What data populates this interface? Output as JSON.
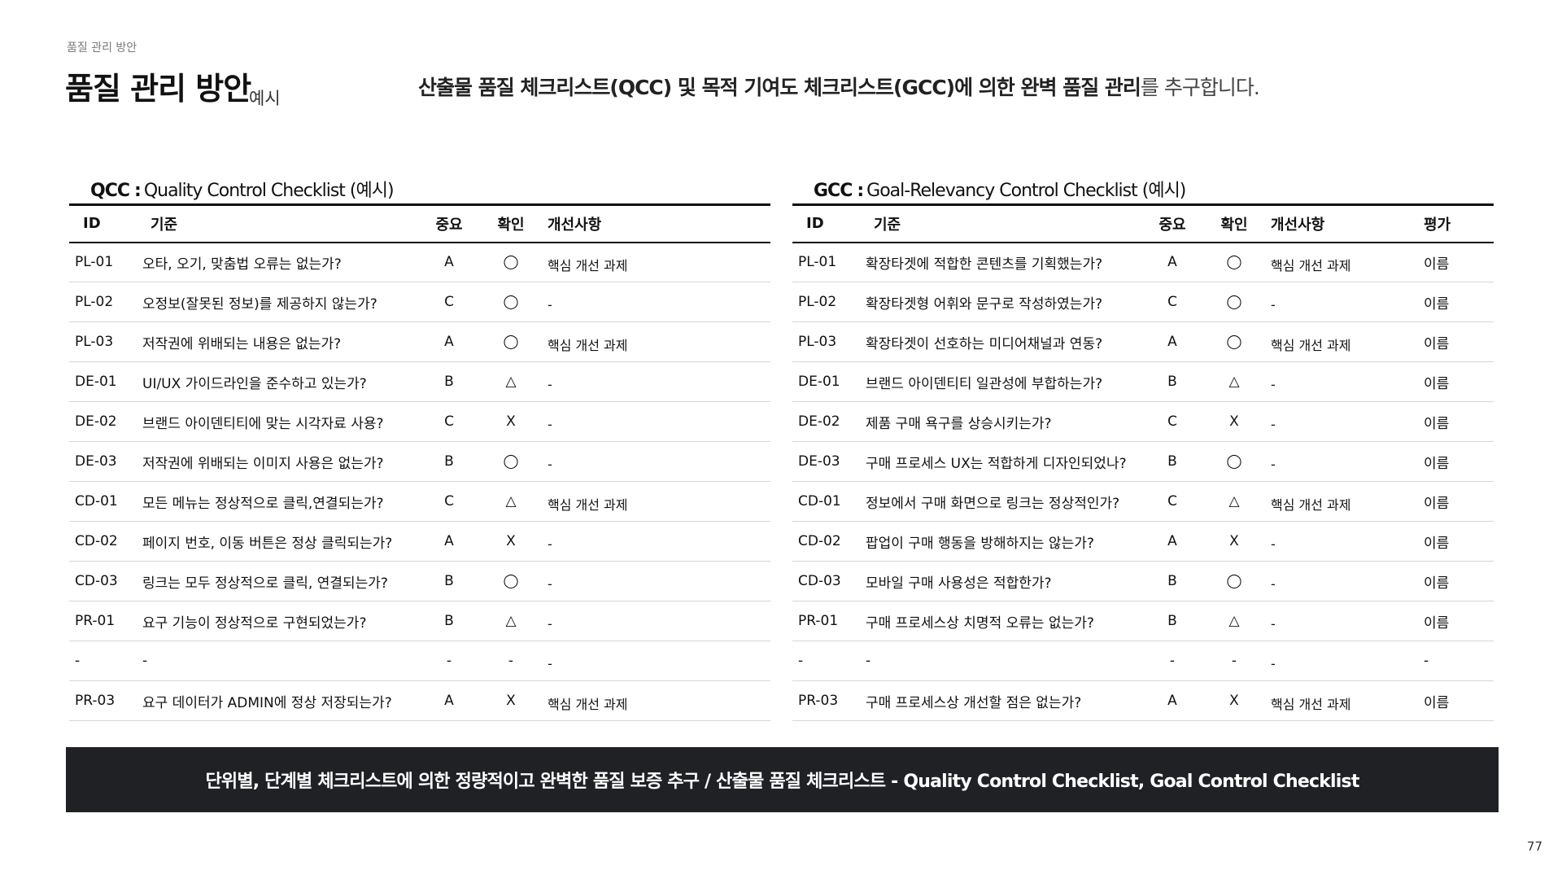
{
  "header": {
    "breadcrumb": "품질 관리 방안",
    "title": "품질 관리 방안",
    "subtitle": "예시",
    "headline_strong": "산출물 품질 체크리스트(QCC) 및 목적 기여도 체크리스트(GCC)에 의한 완벽 품질 관리",
    "headline_light": "를 추구합니다."
  },
  "qcc": {
    "abbr": "QCC",
    "sep": ":",
    "title": "Quality Control Checklist (예시)",
    "columns": {
      "id": "ID",
      "criteria": "기준",
      "importance": "중요",
      "check": "확인",
      "note": "개선사항"
    },
    "rows": [
      {
        "id": "PL-01",
        "criteria": "오타, 오기, 맞춤법 오류는 없는가?",
        "importance": "A",
        "check": "◯",
        "note": "핵심 개선 과제"
      },
      {
        "id": "PL-02",
        "criteria": "오정보(잘못된 정보)를 제공하지 않는가?",
        "importance": "C",
        "check": "◯",
        "note": "-"
      },
      {
        "id": "PL-03",
        "criteria": "저작권에 위배되는 내용은 없는가?",
        "importance": "A",
        "check": "◯",
        "note": "핵심 개선 과제"
      },
      {
        "id": "DE-01",
        "criteria": "UI/UX 가이드라인을 준수하고 있는가?",
        "importance": "B",
        "check": "△",
        "note": "-"
      },
      {
        "id": "DE-02",
        "criteria": "브랜드 아이덴티티에 맞는 시각자료 사용?",
        "importance": "C",
        "check": "X",
        "note": "-"
      },
      {
        "id": "DE-03",
        "criteria": "저작권에 위배되는 이미지 사용은 없는가?",
        "importance": "B",
        "check": "◯",
        "note": "-"
      },
      {
        "id": "CD-01",
        "criteria": "모든 메뉴는 정상적으로 클릭,연결되는가?",
        "importance": "C",
        "check": "△",
        "note": "핵심 개선 과제"
      },
      {
        "id": "CD-02",
        "criteria": "페이지 번호, 이동 버튼은 정상 클릭되는가?",
        "importance": "A",
        "check": "X",
        "note": "-"
      },
      {
        "id": "CD-03",
        "criteria": "링크는 모두 정상적으로 클릭, 연결되는가?",
        "importance": "B",
        "check": "◯",
        "note": "-"
      },
      {
        "id": "PR-01",
        "criteria": "요구 기능이 정상적으로 구현되었는가?",
        "importance": "B",
        "check": "△",
        "note": "-"
      },
      {
        "id": "-",
        "criteria": "-",
        "importance": "-",
        "check": "-",
        "note": "-"
      },
      {
        "id": "PR-03",
        "criteria": "요구 데이터가 ADMIN에 정상 저장되는가?",
        "importance": "A",
        "check": "X",
        "note": "핵심 개선 과제"
      }
    ]
  },
  "gcc": {
    "abbr": "GCC",
    "sep": ":",
    "title": "Goal-Relevancy Control Checklist (예시)",
    "columns": {
      "id": "ID",
      "criteria": "기준",
      "importance": "중요",
      "check": "확인",
      "note": "개선사항",
      "eval": "평가"
    },
    "rows": [
      {
        "id": "PL-01",
        "criteria": "확장타겟에 적합한 콘텐츠를 기획했는가?",
        "importance": "A",
        "check": "◯",
        "note": "핵심 개선 과제",
        "eval": "이름"
      },
      {
        "id": "PL-02",
        "criteria": "확장타겟형 어휘와 문구로 작성하였는가?",
        "importance": "C",
        "check": "◯",
        "note": "-",
        "eval": "이름"
      },
      {
        "id": "PL-03",
        "criteria": "확장타겟이 선호하는 미디어채널과 연동?",
        "importance": "A",
        "check": "◯",
        "note": "핵심 개선 과제",
        "eval": "이름"
      },
      {
        "id": "DE-01",
        "criteria": "브랜드 아이덴티티 일관성에 부합하는가?",
        "importance": "B",
        "check": "△",
        "note": "-",
        "eval": "이름"
      },
      {
        "id": "DE-02",
        "criteria": "제품 구매 욕구를 상승시키는가?",
        "importance": "C",
        "check": "X",
        "note": "-",
        "eval": "이름"
      },
      {
        "id": "DE-03",
        "criteria": "구매 프로세스 UX는 적합하게 디자인되었나?",
        "importance": "B",
        "check": "◯",
        "note": "-",
        "eval": "이름"
      },
      {
        "id": "CD-01",
        "criteria": "정보에서 구매 화면으로 링크는 정상적인가?",
        "importance": "C",
        "check": "△",
        "note": "핵심 개선 과제",
        "eval": "이름"
      },
      {
        "id": "CD-02",
        "criteria": "팝업이 구매 행동을 방해하지는 않는가?",
        "importance": "A",
        "check": "X",
        "note": "-",
        "eval": "이름"
      },
      {
        "id": "CD-03",
        "criteria": "모바일 구매 사용성은 적합한가?",
        "importance": "B",
        "check": "◯",
        "note": "-",
        "eval": "이름"
      },
      {
        "id": "PR-01",
        "criteria": "구매 프로세스상 치명적 오류는 없는가?",
        "importance": "B",
        "check": "△",
        "note": "-",
        "eval": "이름"
      },
      {
        "id": "-",
        "criteria": "-",
        "importance": "-",
        "check": "-",
        "note": "-",
        "eval": "-"
      },
      {
        "id": "PR-03",
        "criteria": "구매 프로세스상 개선할 점은 없는가?",
        "importance": "A",
        "check": "X",
        "note": "핵심 개선 과제",
        "eval": "이름"
      }
    ]
  },
  "footer": {
    "banner": "단위별, 단계별 체크리스트에 의한 정량적이고 완벽한 품질 보증 추구 / 산출물 품질 체크리스트 - Quality Control Checklist, Goal Control Checklist",
    "page_number": "77"
  },
  "colors": {
    "banner_bg": "#202124",
    "text": "#111111",
    "muted": "#7a7a7a",
    "row_divider": "#d6d6d6"
  }
}
